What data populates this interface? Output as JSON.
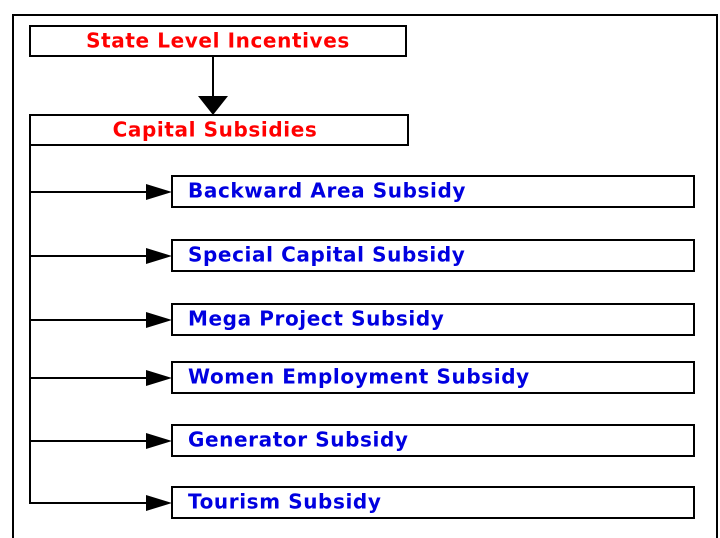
{
  "diagram": {
    "top": "State Level Incentives",
    "root": "Capital Subsidies",
    "items": [
      "Backward Area Subsidy",
      "Special Capital Subsidy",
      "Mega Project Subsidy",
      "Women Employment Subsidy",
      "Generator Subsidy",
      "Tourism Subsidy"
    ]
  }
}
